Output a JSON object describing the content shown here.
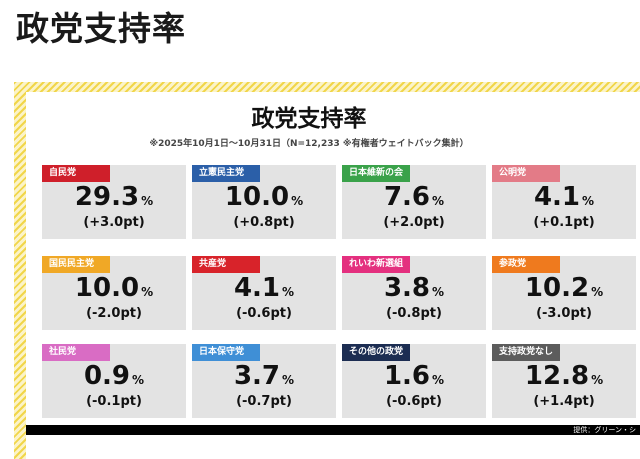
{
  "page_heading": "政党支持率",
  "panel": {
    "title": "政党支持率",
    "subtitle": "※2025年10月1日〜10月31日（N=12,233 ※有権者ウェイトバック集計）",
    "unit": "%",
    "credit": "提供：グリーン・シ"
  },
  "cards": [
    {
      "party": "自民党",
      "value": "29.3",
      "change": "(+3.0pt)",
      "color": "#cf1f2a"
    },
    {
      "party": "立憲民主党",
      "value": "10.0",
      "change": "(+0.8pt)",
      "color": "#2b5fa8"
    },
    {
      "party": "日本維新の会",
      "value": "7.6",
      "change": "(+2.0pt)",
      "color": "#3aa24a"
    },
    {
      "party": "公明党",
      "value": "4.1",
      "change": "(+0.1pt)",
      "color": "#e37b87"
    },
    {
      "party": "国民民主党",
      "value": "10.0",
      "change": "(-2.0pt)",
      "color": "#f0a826"
    },
    {
      "party": "共産党",
      "value": "4.1",
      "change": "(-0.6pt)",
      "color": "#d8232a"
    },
    {
      "party": "れいわ新選組",
      "value": "3.8",
      "change": "(-0.8pt)",
      "color": "#e4307f"
    },
    {
      "party": "参政党",
      "value": "10.2",
      "change": "(-3.0pt)",
      "color": "#ef7a1e"
    },
    {
      "party": "社民党",
      "value": "0.9",
      "change": "(-0.1pt)",
      "color": "#d96cc4"
    },
    {
      "party": "日本保守党",
      "value": "3.7",
      "change": "(-0.7pt)",
      "color": "#3f8fd6"
    },
    {
      "party": "その他の政党",
      "value": "1.6",
      "change": "(-0.6pt)",
      "color": "#1c2d52"
    },
    {
      "party": "支持政党なし",
      "value": "12.8",
      "change": "(+1.4pt)",
      "color": "#5c5c5c"
    }
  ]
}
